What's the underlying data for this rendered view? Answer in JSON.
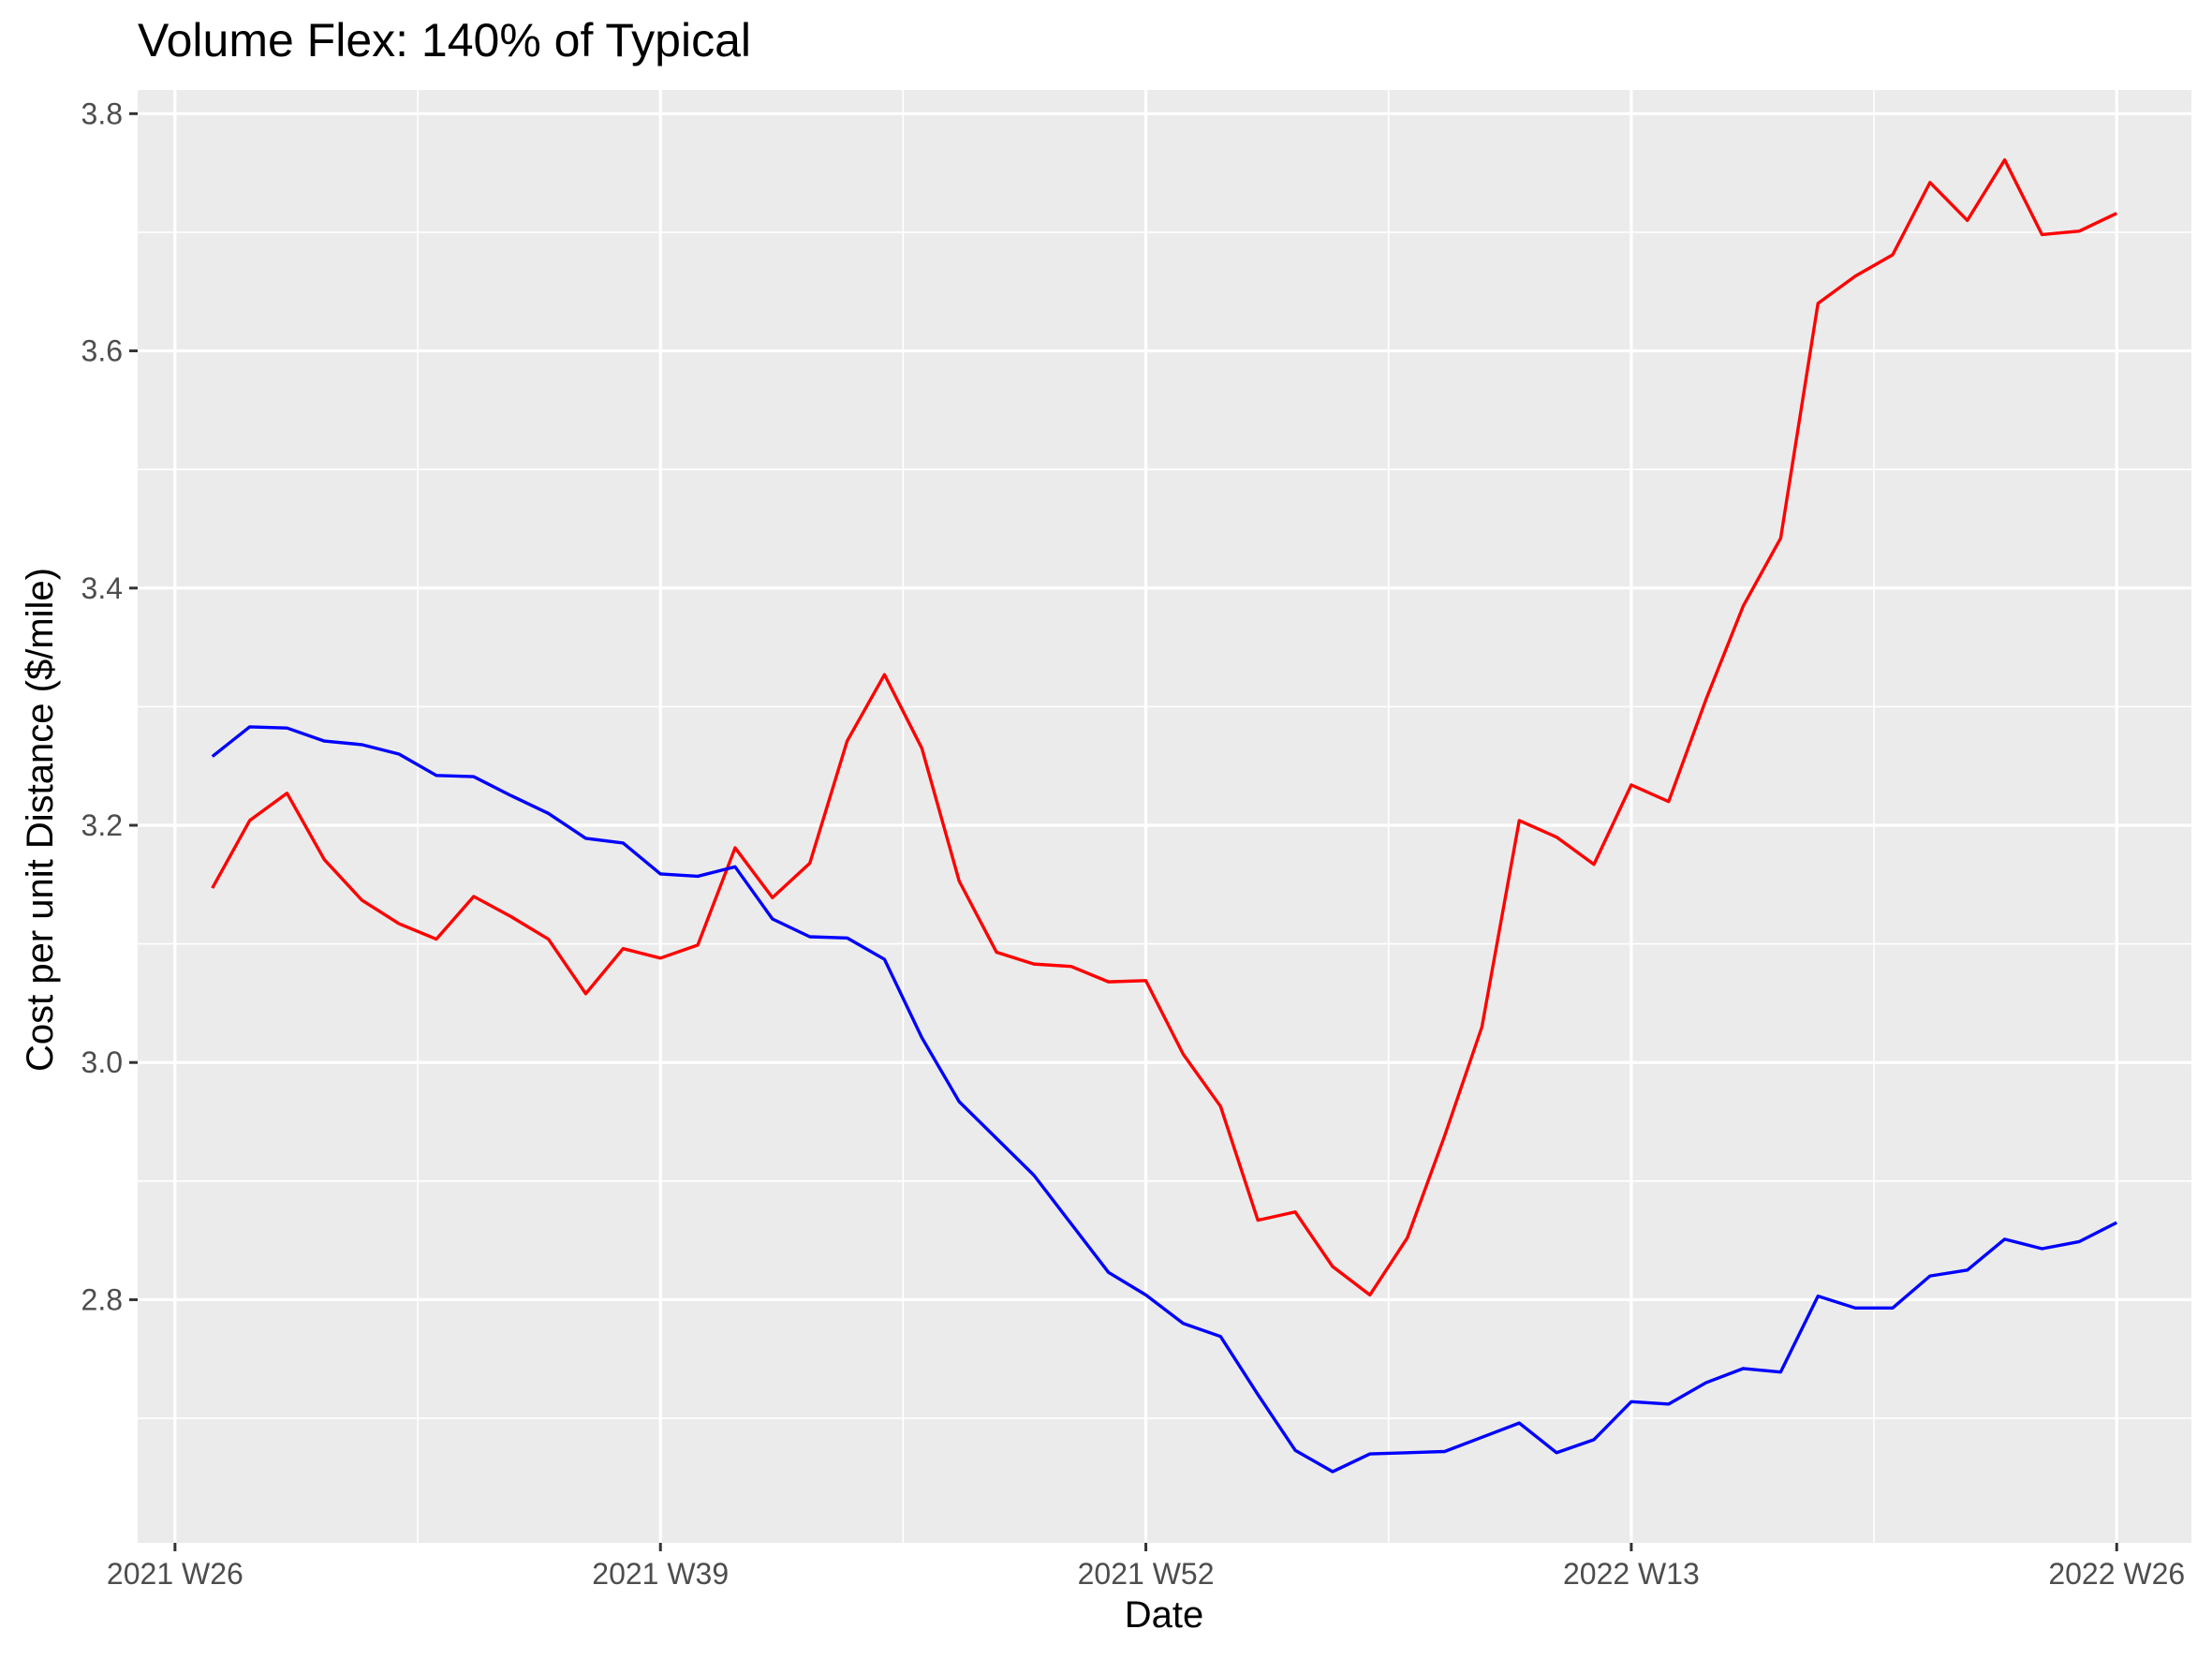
{
  "chart_data": {
    "type": "line",
    "title": "Volume Flex: 140% of Typical",
    "xlabel": "Date",
    "ylabel": "Cost per unit Distance ($/mile)",
    "x_ticks": [
      "2021 W26",
      "2021 W39",
      "2021 W52",
      "2022 W13",
      "2022 W26"
    ],
    "y_ticks": [
      2.8,
      3.0,
      3.2,
      3.4,
      3.6,
      3.8
    ],
    "y_tick_labels": [
      "2.8",
      "3.0",
      "3.2",
      "3.4",
      "3.6",
      "3.8"
    ],
    "ylim": [
      2.595,
      3.82
    ],
    "xlim": [
      "2021 W25",
      "2022 W28"
    ],
    "grid": true,
    "legend": "none",
    "colors": {
      "panel": "#ebebeb",
      "grid": "#ffffff",
      "red_series": "#ff0000",
      "blue_series": "#0000ff"
    },
    "series": [
      {
        "color": "#ff0000",
        "x": [
          "2021 W27",
          "2021 W28",
          "2021 W29",
          "2021 W30",
          "2021 W31",
          "2021 W32",
          "2021 W33",
          "2021 W34",
          "2021 W35",
          "2021 W36",
          "2021 W37",
          "2021 W38",
          "2021 W39",
          "2021 W40",
          "2021 W41",
          "2021 W42",
          "2021 W43",
          "2021 W44",
          "2021 W45",
          "2021 W46",
          "2021 W47",
          "2021 W48",
          "2021 W49",
          "2021 W50",
          "2021 W51",
          "2021 W52",
          "2022 W01",
          "2022 W02",
          "2022 W03",
          "2022 W04",
          "2022 W05",
          "2022 W06",
          "2022 W07",
          "2022 W08",
          "2022 W09",
          "2022 W10",
          "2022 W11",
          "2022 W12",
          "2022 W13",
          "2022 W14",
          "2022 W15",
          "2022 W16",
          "2022 W17",
          "2022 W18",
          "2022 W19",
          "2022 W20",
          "2022 W21",
          "2022 W22",
          "2022 W23",
          "2022 W24",
          "2022 W25",
          "2022 W26"
        ],
        "values": [
          3.147,
          3.204,
          3.227,
          3.171,
          3.137,
          3.117,
          3.104,
          3.14,
          3.123,
          3.104,
          3.058,
          3.096,
          3.088,
          3.099,
          3.181,
          3.139,
          3.168,
          3.271,
          3.327,
          3.265,
          3.153,
          3.093,
          3.083,
          3.081,
          3.068,
          3.069,
          3.007,
          2.963,
          2.867,
          2.874,
          2.828,
          2.804,
          2.852,
          2.938,
          3.03,
          3.204,
          3.19,
          3.167,
          3.234,
          3.22,
          3.306,
          3.385,
          3.442,
          3.64,
          3.663,
          3.681,
          3.742,
          3.71,
          3.761,
          3.698,
          3.701,
          3.716
        ]
      },
      {
        "color": "#0000ff",
        "x": [
          "2021 W27",
          "2021 W28",
          "2021 W29",
          "2021 W30",
          "2021 W31",
          "2021 W32",
          "2021 W33",
          "2021 W34",
          "2021 W35",
          "2021 W36",
          "2021 W37",
          "2021 W38",
          "2021 W39",
          "2021 W40",
          "2021 W41",
          "2021 W42",
          "2021 W43",
          "2021 W44",
          "2021 W45",
          "2021 W46",
          "2021 W47",
          "2021 W48",
          "2021 W49",
          "2021 W50",
          "2021 W51",
          "2021 W52",
          "2022 W01",
          "2022 W02",
          "2022 W03",
          "2022 W04",
          "2022 W05",
          "2022 W06",
          "2022 W07",
          "2022 W08",
          "2022 W09",
          "2022 W10",
          "2022 W11",
          "2022 W12",
          "2022 W13",
          "2022 W14",
          "2022 W15",
          "2022 W16",
          "2022 W17",
          "2022 W18",
          "2022 W19",
          "2022 W20",
          "2022 W21",
          "2022 W22",
          "2022 W23",
          "2022 W24",
          "2022 W25",
          "2022 W26"
        ],
        "values": [
          3.258,
          3.283,
          3.282,
          3.271,
          3.268,
          3.26,
          3.242,
          3.241,
          3.225,
          3.21,
          3.189,
          3.185,
          3.159,
          3.157,
          3.165,
          3.121,
          3.106,
          3.105,
          3.087,
          3.021,
          2.967,
          2.936,
          2.905,
          2.864,
          2.823,
          2.804,
          2.78,
          2.769,
          2.72,
          2.673,
          2.655,
          2.67,
          2.671,
          2.672,
          2.684,
          2.696,
          2.671,
          2.682,
          2.714,
          2.712,
          2.73,
          2.742,
          2.739,
          2.803,
          2.793,
          2.793,
          2.82,
          2.825,
          2.851,
          2.843,
          2.849,
          2.865
        ]
      }
    ]
  }
}
